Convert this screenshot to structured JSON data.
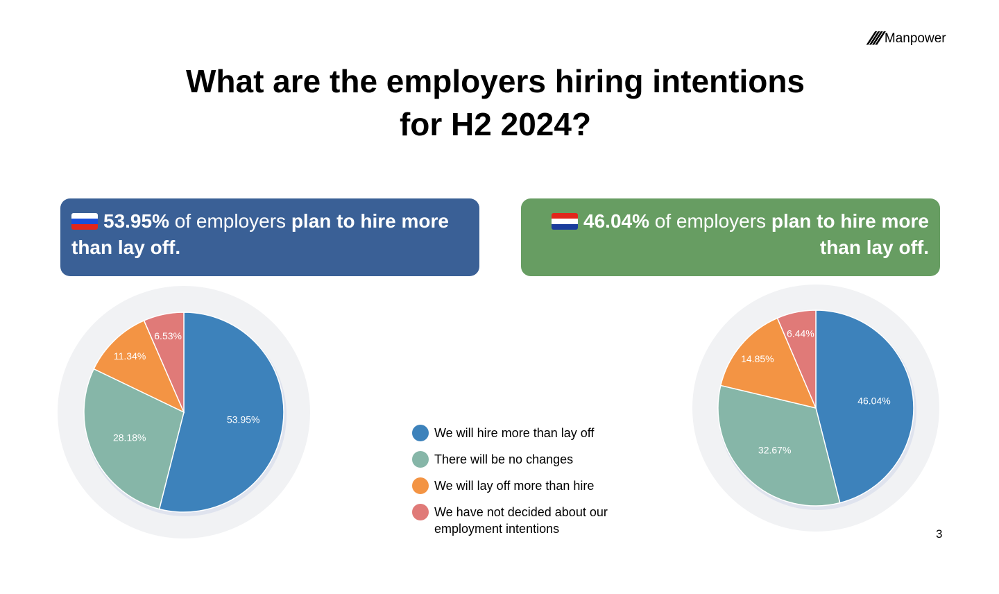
{
  "logo": {
    "text": "Manpower"
  },
  "title": {
    "line1": "What are the employers hiring intentions",
    "line2": "for H2 2024?"
  },
  "boxes": [
    {
      "pct": "53.95%",
      "mid": " of employers ",
      "bold": "plan to hire more than lay off.",
      "color": "#3a6096"
    },
    {
      "pct": "46.04%",
      "mid": " of employers ",
      "bold": "plan to hire more than lay off.",
      "color": "#679d62"
    }
  ],
  "chart_data": [
    {
      "type": "pie",
      "categories": [
        "We will hire more than lay off",
        "There will be no changes",
        "We will lay off more than hire",
        "We have not decided about our employment intentions"
      ],
      "values": [
        53.95,
        28.18,
        11.34,
        6.53
      ],
      "labels": [
        "53.95%",
        "28.18%",
        "11.34%",
        "6.53%"
      ]
    },
    {
      "type": "pie",
      "categories": [
        "We will hire more than lay off",
        "There will be no changes",
        "We will lay off more than hire",
        "We have not decided about our employment intentions"
      ],
      "values": [
        46.04,
        32.67,
        14.85,
        6.44
      ],
      "labels": [
        "46.04%",
        "32.67%",
        "14.85%",
        "6.44%"
      ]
    }
  ],
  "colors": [
    "#3d82bb",
    "#86b6a8",
    "#f39444",
    "#e07a78"
  ],
  "legend": {
    "items": [
      "We will hire more than lay off",
      "There will be no changes",
      "We will lay off more than hire",
      "We have not decided about our employment intentions"
    ],
    "position": "bottom-center"
  },
  "page_number": "3"
}
